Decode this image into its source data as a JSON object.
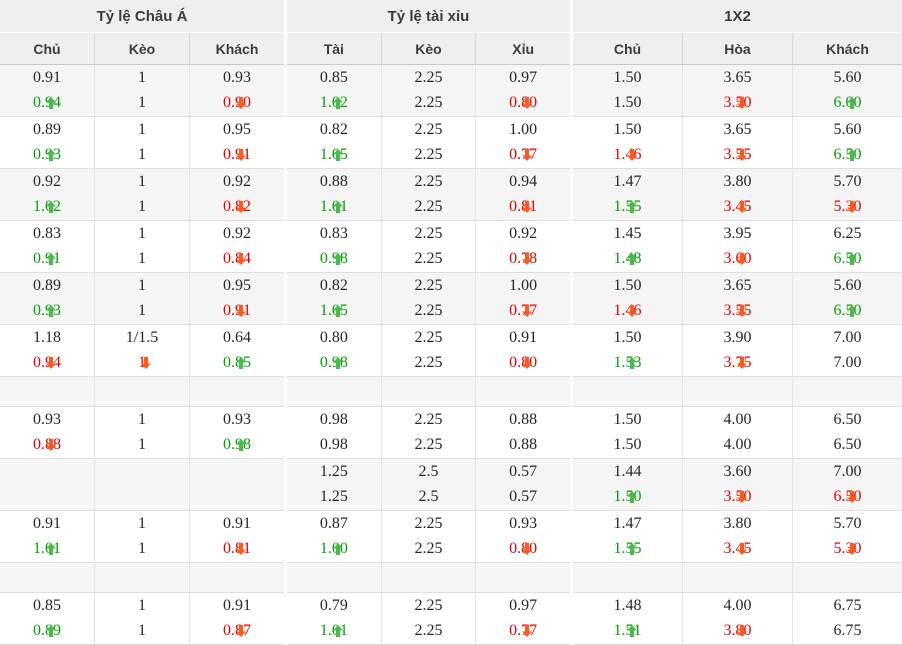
{
  "colors": {
    "header_bg": "#efefef",
    "row_alt_bg": "#f5f5f5",
    "green_text": "#089c08",
    "red_text": "#e60000",
    "up_arrow": "#4db84d",
    "down_arrow": "#ff5a1c"
  },
  "icons": {
    "up": "up-arrow-icon",
    "down": "down-arrow-icon"
  },
  "sections": [
    {
      "title": "Tỷ lệ Châu Á",
      "columns": [
        "Chủ",
        "Kèo",
        "Khách"
      ]
    },
    {
      "title": "Tỷ lệ tài xỉu",
      "columns": [
        "Tài",
        "Kèo",
        "Xỉu"
      ]
    },
    {
      "title": "1X2",
      "columns": [
        "Chủ",
        "Hòa",
        "Khách"
      ]
    }
  ],
  "rows": [
    {
      "bg": "gray",
      "sections": [
        [
          {
            "top": "0.91",
            "bot": "0.94",
            "c": "green",
            "a": "up"
          },
          {
            "top": "1",
            "bot": "1"
          },
          {
            "top": "0.93",
            "bot": "0.90",
            "c": "red",
            "a": "down"
          }
        ],
        [
          {
            "top": "0.85",
            "bot": "1.02",
            "c": "green",
            "a": "up"
          },
          {
            "top": "2.25",
            "bot": "2.25"
          },
          {
            "top": "0.97",
            "bot": "0.80",
            "c": "red",
            "a": "down"
          }
        ],
        [
          {
            "top": "1.50",
            "bot": "1.50"
          },
          {
            "top": "3.65",
            "bot": "3.50",
            "c": "red",
            "a": "down"
          },
          {
            "top": "5.60",
            "bot": "6.00",
            "c": "green",
            "a": "up"
          }
        ]
      ]
    },
    {
      "bg": "white",
      "sections": [
        [
          {
            "top": "0.89",
            "bot": "0.93",
            "c": "green",
            "a": "up"
          },
          {
            "top": "1",
            "bot": "1"
          },
          {
            "top": "0.95",
            "bot": "0.91",
            "c": "red",
            "a": "down"
          }
        ],
        [
          {
            "top": "0.82",
            "bot": "1.05",
            "c": "green",
            "a": "up"
          },
          {
            "top": "2.25",
            "bot": "2.25"
          },
          {
            "top": "1.00",
            "bot": "0.77",
            "c": "red",
            "a": "down"
          }
        ],
        [
          {
            "top": "1.50",
            "bot": "1.46",
            "c": "red",
            "a": "down"
          },
          {
            "top": "3.65",
            "bot": "3.55",
            "c": "red",
            "a": "down"
          },
          {
            "top": "5.60",
            "bot": "6.50",
            "c": "green",
            "a": "up"
          }
        ]
      ]
    },
    {
      "bg": "gray",
      "sections": [
        [
          {
            "top": "0.92",
            "bot": "1.02",
            "c": "green",
            "a": "up"
          },
          {
            "top": "1",
            "bot": "1"
          },
          {
            "top": "0.92",
            "bot": "0.82",
            "c": "red",
            "a": "down"
          }
        ],
        [
          {
            "top": "0.88",
            "bot": "1.01",
            "c": "green",
            "a": "up"
          },
          {
            "top": "2.25",
            "bot": "2.25"
          },
          {
            "top": "0.94",
            "bot": "0.81",
            "c": "red",
            "a": "down"
          }
        ],
        [
          {
            "top": "1.47",
            "bot": "1.55",
            "c": "green",
            "a": "up"
          },
          {
            "top": "3.80",
            "bot": "3.45",
            "c": "red",
            "a": "down"
          },
          {
            "top": "5.70",
            "bot": "5.30",
            "c": "red",
            "a": "down"
          }
        ]
      ]
    },
    {
      "bg": "white",
      "sections": [
        [
          {
            "top": "0.83",
            "bot": "0.91",
            "c": "green",
            "a": "up"
          },
          {
            "top": "1",
            "bot": "1"
          },
          {
            "top": "0.92",
            "bot": "0.84",
            "c": "red",
            "a": "down"
          }
        ],
        [
          {
            "top": "0.83",
            "bot": "0.98",
            "c": "green",
            "a": "up"
          },
          {
            "top": "2.25",
            "bot": "2.25"
          },
          {
            "top": "0.92",
            "bot": "0.78",
            "c": "red",
            "a": "down"
          }
        ],
        [
          {
            "top": "1.45",
            "bot": "1.48",
            "c": "green",
            "a": "up"
          },
          {
            "top": "3.95",
            "bot": "3.60",
            "c": "red",
            "a": "down"
          },
          {
            "top": "6.25",
            "bot": "6.50",
            "c": "green",
            "a": "up"
          }
        ]
      ]
    },
    {
      "bg": "gray",
      "sections": [
        [
          {
            "top": "0.89",
            "bot": "0.93",
            "c": "green",
            "a": "up"
          },
          {
            "top": "1",
            "bot": "1"
          },
          {
            "top": "0.95",
            "bot": "0.91",
            "c": "red",
            "a": "down"
          }
        ],
        [
          {
            "top": "0.82",
            "bot": "1.05",
            "c": "green",
            "a": "up"
          },
          {
            "top": "2.25",
            "bot": "2.25"
          },
          {
            "top": "1.00",
            "bot": "0.77",
            "c": "red",
            "a": "down"
          }
        ],
        [
          {
            "top": "1.50",
            "bot": "1.46",
            "c": "red",
            "a": "down"
          },
          {
            "top": "3.65",
            "bot": "3.55",
            "c": "red",
            "a": "down"
          },
          {
            "top": "5.60",
            "bot": "6.50",
            "c": "green",
            "a": "up"
          }
        ]
      ]
    },
    {
      "bg": "white",
      "sections": [
        [
          {
            "top": "1.18",
            "bot": "0.94",
            "c": "red",
            "a": "down"
          },
          {
            "top": "1/1.5",
            "bot": "1",
            "c": "red",
            "a": "down"
          },
          {
            "top": "0.64",
            "bot": "0.85",
            "c": "green",
            "a": "up"
          }
        ],
        [
          {
            "top": "0.80",
            "bot": "0.98",
            "c": "green",
            "a": "up"
          },
          {
            "top": "2.25",
            "bot": "2.25"
          },
          {
            "top": "0.91",
            "bot": "0.80",
            "c": "red",
            "a": "down"
          }
        ],
        [
          {
            "top": "1.50",
            "bot": "1.53",
            "c": "green",
            "a": "up"
          },
          {
            "top": "3.90",
            "bot": "3.75",
            "c": "red",
            "a": "down"
          },
          {
            "top": "7.00",
            "bot": "7.00"
          }
        ]
      ]
    },
    {
      "bg": "gray",
      "empty": true
    },
    {
      "bg": "white",
      "sections": [
        [
          {
            "top": "0.93",
            "bot": "0.88",
            "c": "red",
            "a": "down"
          },
          {
            "top": "1",
            "bot": "1"
          },
          {
            "top": "0.93",
            "bot": "0.98",
            "c": "green",
            "a": "up"
          }
        ],
        [
          {
            "top": "0.98",
            "bot": "0.98"
          },
          {
            "top": "2.25",
            "bot": "2.25"
          },
          {
            "top": "0.88",
            "bot": "0.88"
          }
        ],
        [
          {
            "top": "1.50",
            "bot": "1.50"
          },
          {
            "top": "4.00",
            "bot": "4.00"
          },
          {
            "top": "6.50",
            "bot": "6.50"
          }
        ]
      ]
    },
    {
      "bg": "gray",
      "sections": [
        [
          {
            "top": "",
            "bot": ""
          },
          {
            "top": "",
            "bot": ""
          },
          {
            "top": "",
            "bot": ""
          }
        ],
        [
          {
            "top": "1.25",
            "bot": "1.25"
          },
          {
            "top": "2.5",
            "bot": "2.5"
          },
          {
            "top": "0.57",
            "bot": "0.57"
          }
        ],
        [
          {
            "top": "1.44",
            "bot": "1.50",
            "c": "green",
            "a": "up"
          },
          {
            "top": "3.60",
            "bot": "3.50",
            "c": "red",
            "a": "down"
          },
          {
            "top": "7.00",
            "bot": "6.50",
            "c": "red",
            "a": "down"
          }
        ]
      ]
    },
    {
      "bg": "white",
      "sections": [
        [
          {
            "top": "0.91",
            "bot": "1.01",
            "c": "green",
            "a": "up"
          },
          {
            "top": "1",
            "bot": "1"
          },
          {
            "top": "0.91",
            "bot": "0.81",
            "c": "red",
            "a": "down"
          }
        ],
        [
          {
            "top": "0.87",
            "bot": "1.00",
            "c": "green",
            "a": "up"
          },
          {
            "top": "2.25",
            "bot": "2.25"
          },
          {
            "top": "0.93",
            "bot": "0.80",
            "c": "red",
            "a": "down"
          }
        ],
        [
          {
            "top": "1.47",
            "bot": "1.55",
            "c": "green",
            "a": "up"
          },
          {
            "top": "3.80",
            "bot": "3.45",
            "c": "red",
            "a": "down"
          },
          {
            "top": "5.70",
            "bot": "5.30",
            "c": "red",
            "a": "down"
          }
        ]
      ]
    },
    {
      "bg": "gray",
      "empty": true
    },
    {
      "bg": "white",
      "sections": [
        [
          {
            "top": "0.85",
            "bot": "0.89",
            "c": "green",
            "a": "up"
          },
          {
            "top": "1",
            "bot": "1"
          },
          {
            "top": "0.91",
            "bot": "0.87",
            "c": "red",
            "a": "down"
          }
        ],
        [
          {
            "top": "0.79",
            "bot": "1.01",
            "c": "green",
            "a": "up"
          },
          {
            "top": "2.25",
            "bot": "2.25"
          },
          {
            "top": "0.97",
            "bot": "0.77",
            "c": "red",
            "a": "down"
          }
        ],
        [
          {
            "top": "1.48",
            "bot": "1.51",
            "c": "green",
            "a": "up"
          },
          {
            "top": "4.00",
            "bot": "3.80",
            "c": "red",
            "a": "down"
          },
          {
            "top": "6.75",
            "bot": "6.75"
          }
        ]
      ]
    }
  ]
}
